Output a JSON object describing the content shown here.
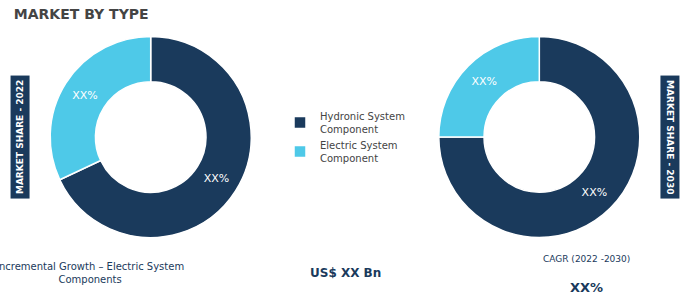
{
  "title": "MARKET BY TYPE",
  "chart_data": [
    {
      "type": "pie",
      "title": "MARKET SHARE - 2022",
      "categories": [
        "Hydronic System\nComponent",
        "Electric System\nComponent"
      ],
      "values": [
        68,
        32
      ],
      "value_labels": [
        "XX%",
        "XX%"
      ],
      "colors": [
        "#1a3a5c",
        "#4ec9e8"
      ],
      "data_labels": true,
      "legend": "center"
    },
    {
      "type": "pie",
      "title": "MARKET SHARE - 2030",
      "categories": [
        "Hydronic System\nComponent",
        "Electric System\nComponent"
      ],
      "values": [
        75,
        25
      ],
      "value_labels": [
        "XX%",
        "XX%"
      ],
      "colors": [
        "#1a3a5c",
        "#4ec9e8"
      ],
      "data_labels": true,
      "legend": "center"
    }
  ],
  "annotations": [
    "Incremental Growth – Electric System\nComponents",
    "US$ XX Bn",
    "CAGR (2022 -2030)",
    "XX%"
  ]
}
